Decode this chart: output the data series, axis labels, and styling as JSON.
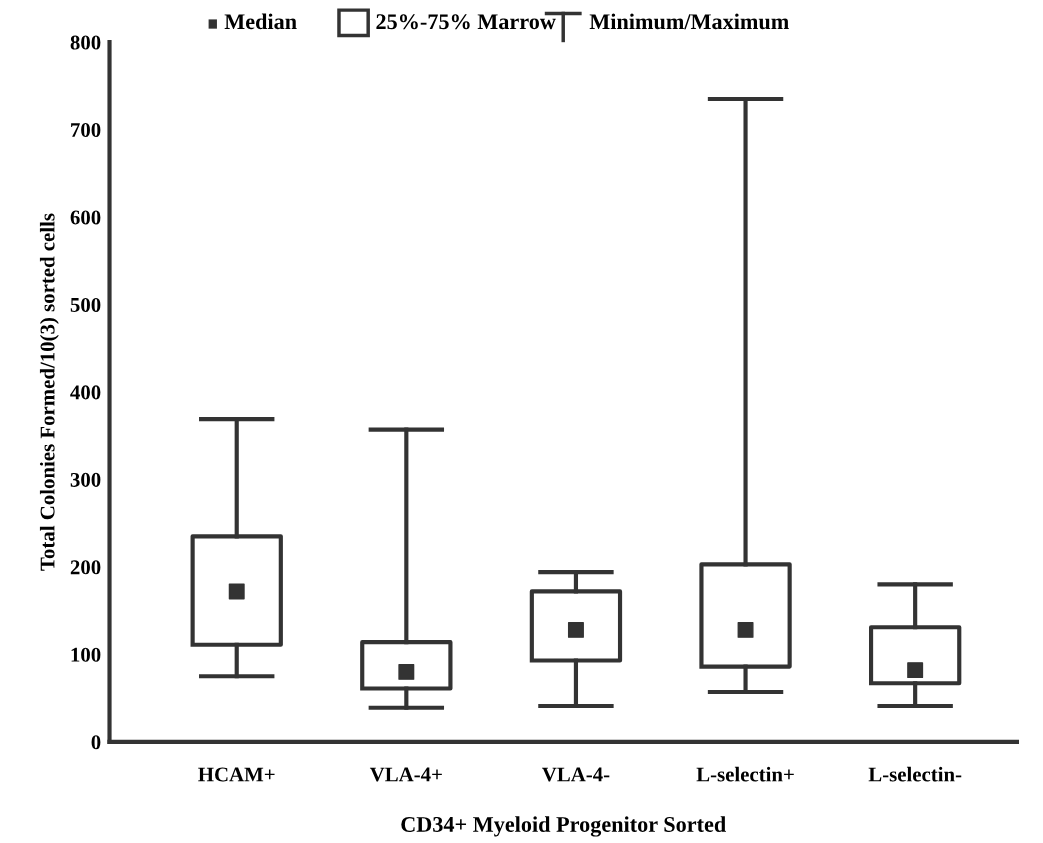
{
  "chart_data": {
    "type": "box",
    "xlabel": "CD34+ Myeloid Progenitor Sorted",
    "ylabel": "Total Colonies Formed/10(3) sorted cells",
    "categories": [
      "HCAM+",
      "VLA-4+",
      "VLA-4-",
      "L-selectin+",
      "L-selectin-"
    ],
    "boxes": [
      {
        "low": 75,
        "q1": 111,
        "median": 172,
        "q3": 235,
        "high": 369
      },
      {
        "low": 39,
        "q1": 61,
        "median": 80,
        "q3": 114,
        "high": 357
      },
      {
        "low": 41,
        "q1": 93,
        "median": 128,
        "q3": 172,
        "high": 194
      },
      {
        "low": 57,
        "q1": 86,
        "median": 128,
        "q3": 203,
        "high": 735
      },
      {
        "low": 41,
        "q1": 67,
        "median": 82,
        "q3": 131,
        "high": 180
      }
    ],
    "annotations": [
      "Median",
      "25%-75% Marrow",
      "Minimum/Maximum"
    ],
    "color": "#333333",
    "grid": false,
    "ylim": [
      0,
      800
    ],
    "yticks": [
      0,
      100,
      200,
      300,
      400,
      500,
      600,
      700,
      800
    ]
  }
}
